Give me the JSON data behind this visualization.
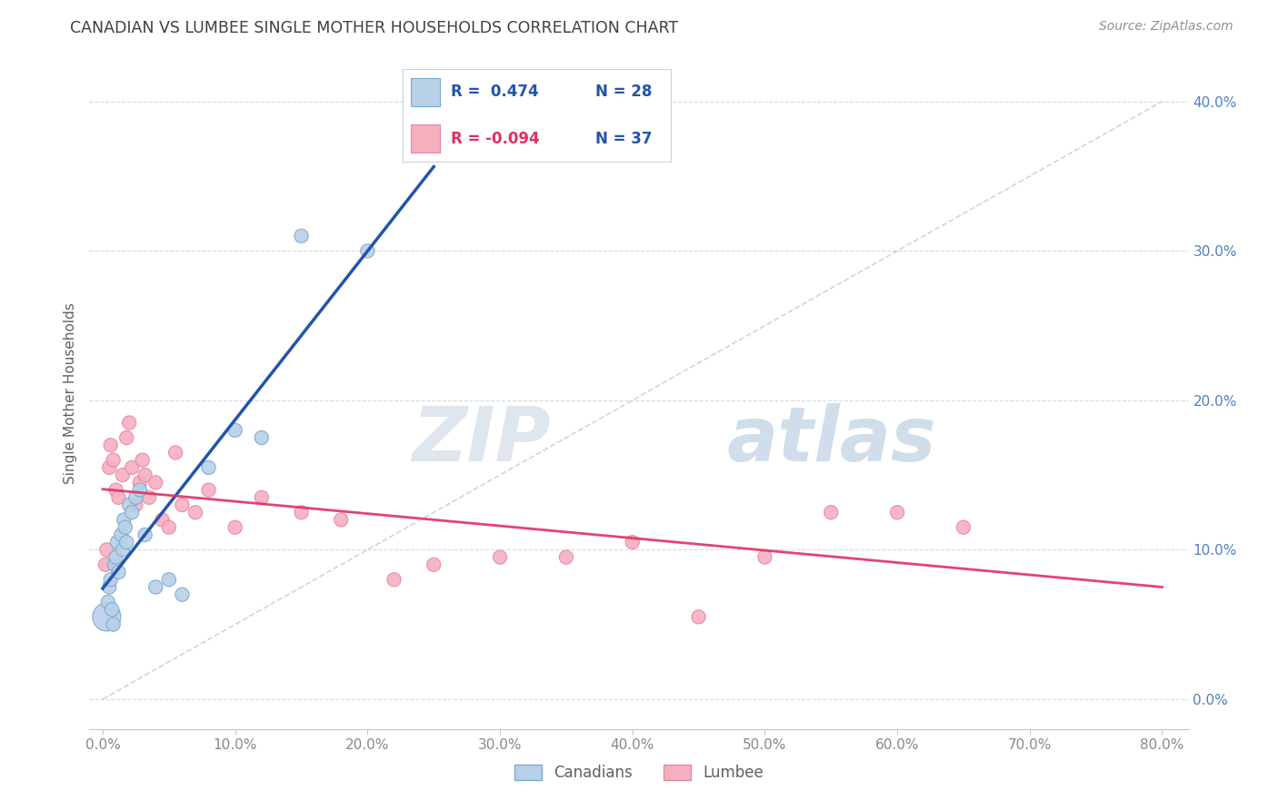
{
  "title": "CANADIAN VS LUMBEE SINGLE MOTHER HOUSEHOLDS CORRELATION CHART",
  "source": "Source: ZipAtlas.com",
  "ylabel": "Single Mother Households",
  "xlabel_vals": [
    0,
    10,
    20,
    30,
    40,
    50,
    60,
    70,
    80
  ],
  "ylabel_vals": [
    0,
    10,
    20,
    30,
    40
  ],
  "xlim": [
    -1,
    82
  ],
  "ylim": [
    -2,
    43
  ],
  "canadian_R": 0.474,
  "canadian_N": 28,
  "lumbee_R": -0.094,
  "lumbee_N": 37,
  "canadian_color": "#b8d0e8",
  "lumbee_color": "#f5b0c0",
  "canadian_edge_color": "#7aa8d0",
  "lumbee_edge_color": "#e888a0",
  "canadian_line_color": "#2255aa",
  "lumbee_line_color": "#e03060",
  "diagonal_color": "#c0ccd8",
  "background_color": "#ffffff",
  "grid_color": "#d0d8e0",
  "title_color": "#404040",
  "right_axis_color": "#5080c0",
  "source_color": "#909090",
  "legend_r_blue": "#2255aa",
  "legend_r_pink": "#e03060",
  "canadian_x": [
    0.3,
    0.4,
    0.5,
    0.6,
    0.7,
    0.8,
    0.9,
    1.0,
    1.1,
    1.2,
    1.4,
    1.5,
    1.6,
    1.7,
    1.8,
    2.0,
    2.2,
    2.5,
    2.8,
    3.2,
    4.0,
    5.0,
    6.0,
    8.0,
    10.0,
    12.0,
    15.0,
    20.0
  ],
  "canadian_y": [
    5.5,
    6.5,
    7.5,
    8.0,
    6.0,
    5.0,
    9.0,
    9.5,
    10.5,
    8.5,
    11.0,
    10.0,
    12.0,
    11.5,
    10.5,
    13.0,
    12.5,
    13.5,
    14.0,
    11.0,
    7.5,
    8.0,
    7.0,
    15.5,
    18.0,
    17.5,
    31.0,
    30.0
  ],
  "canadian_sizes": [
    500,
    120,
    120,
    120,
    120,
    120,
    120,
    120,
    120,
    120,
    120,
    120,
    120,
    120,
    120,
    120,
    120,
    120,
    120,
    120,
    120,
    120,
    120,
    120,
    120,
    120,
    120,
    120
  ],
  "lumbee_x": [
    0.2,
    0.3,
    0.5,
    0.6,
    0.8,
    1.0,
    1.2,
    1.5,
    1.8,
    2.0,
    2.2,
    2.5,
    2.8,
    3.0,
    3.2,
    3.5,
    4.0,
    4.5,
    5.0,
    5.5,
    6.0,
    7.0,
    8.0,
    10.0,
    12.0,
    15.0,
    18.0,
    22.0,
    25.0,
    30.0,
    35.0,
    40.0,
    45.0,
    50.0,
    55.0,
    60.0,
    65.0
  ],
  "lumbee_y": [
    9.0,
    10.0,
    15.5,
    17.0,
    16.0,
    14.0,
    13.5,
    15.0,
    17.5,
    18.5,
    15.5,
    13.0,
    14.5,
    16.0,
    15.0,
    13.5,
    14.5,
    12.0,
    11.5,
    16.5,
    13.0,
    12.5,
    14.0,
    11.5,
    13.5,
    12.5,
    12.0,
    8.0,
    9.0,
    9.5,
    9.5,
    10.5,
    5.5,
    9.5,
    12.5,
    12.5,
    11.5
  ],
  "lumbee_sizes": [
    120,
    120,
    120,
    120,
    120,
    120,
    120,
    120,
    120,
    120,
    120,
    120,
    120,
    120,
    120,
    120,
    120,
    120,
    120,
    120,
    120,
    120,
    120,
    120,
    120,
    120,
    120,
    120,
    120,
    120,
    120,
    120,
    120,
    120,
    120,
    120,
    120
  ],
  "watermark_zip": "ZIP",
  "watermark_atlas": "atlas",
  "legend_labels": [
    "Canadians",
    "Lumbee"
  ]
}
